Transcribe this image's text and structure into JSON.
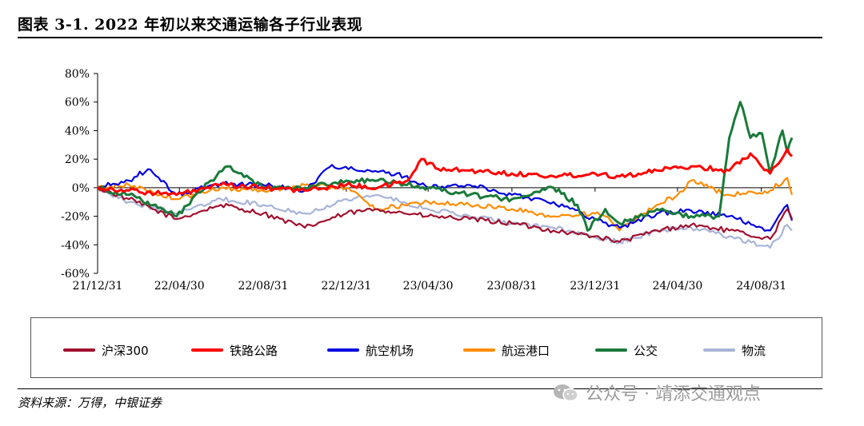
{
  "title": "图表 3-1. 2022 年初以来交通运输各子行业表现",
  "source": "资料来源：万得，中银证券",
  "watermark": "公众号 · 靖添交通观点",
  "chart_data": {
    "type": "line",
    "title": "",
    "xlabel": "",
    "ylabel": "",
    "ylim": [
      -0.6,
      0.8
    ],
    "yticks": [
      -0.6,
      -0.4,
      -0.2,
      0,
      0.2,
      0.4,
      0.6,
      0.8
    ],
    "ytick_labels": [
      "-60%",
      "-40%",
      "-20%",
      "0%",
      "20%",
      "40%",
      "60%",
      "80%"
    ],
    "xlim": [
      "2021-12-31",
      "2024-10-15"
    ],
    "xticks": [
      "2021-12-31",
      "2022-04-30",
      "2022-08-31",
      "2022-12-31",
      "2023-04-30",
      "2023-08-31",
      "2023-12-31",
      "2024-04-30",
      "2024-08-31"
    ],
    "xtick_labels": [
      "21/12/31",
      "22/04/30",
      "22/08/31",
      "22/12/31",
      "23/04/30",
      "23/08/31",
      "23/12/31",
      "24/04/30",
      "24/08/31"
    ],
    "grid": false,
    "legend": "bottom",
    "series": [
      {
        "name": "沪深300",
        "color": "#a0102e",
        "x": [
          "2021-12-31",
          "2022-02-15",
          "2022-04-26",
          "2022-06-30",
          "2022-08-31",
          "2022-10-31",
          "2022-12-31",
          "2023-02-15",
          "2023-04-30",
          "2023-06-30",
          "2023-08-31",
          "2023-10-31",
          "2023-12-31",
          "2024-02-05",
          "2024-03-31",
          "2024-05-20",
          "2024-07-15",
          "2024-09-13",
          "2024-10-08",
          "2024-10-15"
        ],
        "y": [
          0,
          -0.08,
          -0.22,
          -0.12,
          -0.18,
          -0.28,
          -0.18,
          -0.15,
          -0.2,
          -0.22,
          -0.25,
          -0.3,
          -0.34,
          -0.38,
          -0.3,
          -0.26,
          -0.3,
          -0.36,
          -0.15,
          -0.22
        ]
      },
      {
        "name": "铁路公路",
        "color": "#ff0000",
        "x": [
          "2021-12-31",
          "2022-02-15",
          "2022-04-26",
          "2022-06-30",
          "2022-08-31",
          "2022-10-31",
          "2022-12-31",
          "2023-02-15",
          "2023-03-31",
          "2023-04-20",
          "2023-05-15",
          "2023-06-30",
          "2023-08-31",
          "2023-10-31",
          "2023-12-31",
          "2024-02-05",
          "2024-03-31",
          "2024-05-20",
          "2024-07-15",
          "2024-08-15",
          "2024-09-13",
          "2024-10-08",
          "2024-10-15"
        ],
        "y": [
          0,
          -0.02,
          -0.05,
          0.02,
          0.0,
          -0.02,
          0.02,
          0.0,
          0.05,
          0.2,
          0.13,
          0.12,
          0.1,
          0.08,
          0.1,
          0.08,
          0.12,
          0.15,
          0.12,
          0.24,
          0.1,
          0.27,
          0.22
        ]
      },
      {
        "name": "航空机场",
        "color": "#0000e0",
        "x": [
          "2021-12-31",
          "2022-02-15",
          "2022-03-15",
          "2022-04-26",
          "2022-06-30",
          "2022-08-31",
          "2022-10-31",
          "2022-12-10",
          "2023-01-15",
          "2023-03-15",
          "2023-04-30",
          "2023-06-30",
          "2023-08-31",
          "2023-10-31",
          "2023-12-31",
          "2024-02-05",
          "2024-03-31",
          "2024-05-20",
          "2024-07-15",
          "2024-09-13",
          "2024-10-08",
          "2024-10-15"
        ],
        "y": [
          0,
          0.05,
          0.13,
          -0.05,
          0.03,
          0.02,
          -0.02,
          0.16,
          0.12,
          0.1,
          0.0,
          0.02,
          -0.05,
          -0.1,
          -0.22,
          -0.28,
          -0.18,
          -0.16,
          -0.2,
          -0.3,
          -0.12,
          -0.23
        ]
      },
      {
        "name": "航运港口",
        "color": "#ff8c00",
        "x": [
          "2021-12-31",
          "2022-02-15",
          "2022-04-26",
          "2022-06-30",
          "2022-08-31",
          "2022-10-31",
          "2022-12-31",
          "2023-02-15",
          "2023-04-30",
          "2023-06-30",
          "2023-08-31",
          "2023-10-31",
          "2023-12-31",
          "2024-01-15",
          "2024-02-05",
          "2024-03-31",
          "2024-04-30",
          "2024-05-20",
          "2024-06-15",
          "2024-07-15",
          "2024-09-13",
          "2024-10-08",
          "2024-10-15"
        ],
        "y": [
          0,
          0.02,
          -0.08,
          0.0,
          -0.02,
          0.02,
          0.0,
          -0.15,
          -0.1,
          -0.12,
          -0.15,
          -0.2,
          -0.18,
          -0.2,
          -0.3,
          -0.12,
          -0.05,
          0.05,
          0.0,
          -0.05,
          -0.02,
          0.07,
          -0.05
        ]
      },
      {
        "name": "公交",
        "color": "#1a7a3a",
        "x": [
          "2021-12-31",
          "2022-02-15",
          "2022-04-26",
          "2022-06-15",
          "2022-07-10",
          "2022-08-31",
          "2022-10-31",
          "2022-12-31",
          "2023-02-15",
          "2023-04-30",
          "2023-06-30",
          "2023-08-31",
          "2023-10-31",
          "2023-12-05",
          "2023-12-20",
          "2024-01-15",
          "2024-02-05",
          "2024-03-31",
          "2024-05-20",
          "2024-06-30",
          "2024-07-15",
          "2024-07-31",
          "2024-08-15",
          "2024-09-01",
          "2024-09-13",
          "2024-10-01",
          "2024-10-08",
          "2024-10-15"
        ],
        "y": [
          0,
          -0.05,
          -0.2,
          0.05,
          0.15,
          0.0,
          0.0,
          0.05,
          0.05,
          0.0,
          -0.05,
          -0.08,
          0.0,
          -0.12,
          -0.3,
          -0.15,
          -0.25,
          -0.15,
          -0.2,
          -0.2,
          0.35,
          0.6,
          0.35,
          0.38,
          0.1,
          0.4,
          0.25,
          0.35
        ]
      },
      {
        "name": "物流",
        "color": "#a8b4d8",
        "x": [
          "2021-12-31",
          "2022-02-15",
          "2022-04-26",
          "2022-06-30",
          "2022-08-31",
          "2022-10-31",
          "2022-12-31",
          "2023-02-15",
          "2023-04-30",
          "2023-06-30",
          "2023-08-31",
          "2023-10-31",
          "2023-12-31",
          "2024-02-05",
          "2024-03-31",
          "2024-05-20",
          "2024-07-15",
          "2024-09-13",
          "2024-10-08",
          "2024-10-15"
        ],
        "y": [
          0,
          -0.1,
          -0.18,
          -0.08,
          -0.12,
          -0.18,
          -0.08,
          -0.05,
          -0.15,
          -0.2,
          -0.25,
          -0.28,
          -0.35,
          -0.38,
          -0.3,
          -0.28,
          -0.34,
          -0.42,
          -0.26,
          -0.3
        ]
      }
    ]
  }
}
